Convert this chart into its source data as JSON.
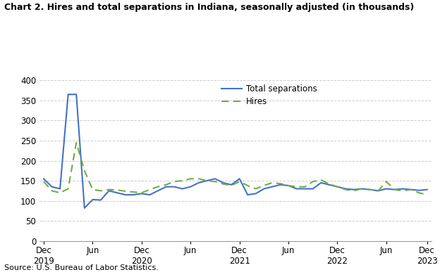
{
  "title": "Chart 2. Hires and total separations in Indiana, seasonally adjusted (in thousands)",
  "source": "Source: U.S. Bureau of Labor Statistics.",
  "legend": [
    "Total separations",
    "Hires"
  ],
  "line_colors": [
    "#4472C4",
    "#70AD47"
  ],
  "background_color": "#ffffff",
  "ylim": [
    0,
    400
  ],
  "yticks": [
    0,
    50,
    100,
    150,
    200,
    250,
    300,
    350,
    400
  ],
  "total_separations": [
    155,
    135,
    130,
    365,
    365,
    82,
    103,
    102,
    125,
    120,
    115,
    115,
    118,
    115,
    125,
    135,
    135,
    130,
    135,
    145,
    150,
    155,
    145,
    140,
    155,
    115,
    118,
    130,
    135,
    140,
    138,
    130,
    130,
    130,
    145,
    140,
    135,
    130,
    128,
    130,
    128,
    125,
    130,
    128,
    130,
    128,
    126,
    128
  ],
  "hires": [
    148,
    125,
    120,
    130,
    245,
    175,
    128,
    125,
    128,
    127,
    124,
    122,
    120,
    128,
    135,
    140,
    148,
    150,
    155,
    155,
    150,
    148,
    142,
    138,
    148,
    138,
    130,
    138,
    145,
    143,
    138,
    135,
    135,
    148,
    152,
    142,
    135,
    128,
    125,
    130,
    128,
    125,
    148,
    128,
    125,
    128,
    120,
    115
  ],
  "n_points": 48,
  "x_tick_positions": [
    0,
    6,
    12,
    18,
    24,
    30,
    36,
    42,
    47
  ],
  "x_tick_tops": [
    "Dec",
    "Jun",
    "Dec",
    "Jun",
    "Dec",
    "Jun",
    "Dec",
    "Jun",
    "Dec"
  ],
  "x_tick_years": [
    "2019",
    "",
    "2020",
    "",
    "2021",
    "",
    "2022",
    "",
    "2023"
  ]
}
